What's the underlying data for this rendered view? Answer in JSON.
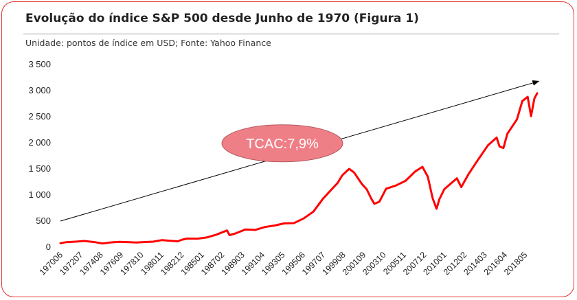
{
  "colors": {
    "frame": "#e0312f",
    "series": "#ff0000",
    "bubble_fill": "#ef7f87",
    "bubble_stroke": "#b35a60",
    "arrow": "#000000"
  },
  "chart_data": {
    "type": "line",
    "title": "Evolução do índice S&P 500 desde Junho de 1970 (Figura 1)",
    "subtitle": "Unidade: pontos de índice em USD; Fonte: Yahoo Finance",
    "ylim": [
      0,
      3500
    ],
    "yticks": [
      "0",
      "500",
      "1 000",
      "1 500",
      "2 000",
      "2 500",
      "3 000",
      "3 500"
    ],
    "ytick_values": [
      0,
      500,
      1000,
      1500,
      2000,
      2500,
      3000,
      3500
    ],
    "grid": false,
    "x_range": [
      1970.42,
      2019.58
    ],
    "xtick_labels": [
      "197006",
      "197207",
      "197408",
      "197609",
      "197810",
      "198011",
      "198212",
      "198501",
      "198702",
      "198903",
      "199104",
      "199305",
      "199506",
      "199707",
      "199908",
      "200109",
      "200310",
      "200511",
      "200712",
      "201001",
      "201202",
      "201403",
      "201604",
      "201805"
    ],
    "xtick_values": [
      1970.42,
      1972.5,
      1974.58,
      1976.67,
      1978.75,
      1980.83,
      1982.92,
      1985.0,
      1987.08,
      1989.17,
      1991.25,
      1993.33,
      1995.42,
      1997.5,
      1999.58,
      2001.67,
      2003.75,
      2005.83,
      2007.92,
      2010.0,
      2012.08,
      2014.17,
      2016.25,
      2018.33
    ],
    "series": [
      {
        "points": [
          [
            1970.42,
            75
          ],
          [
            1971.0,
            95
          ],
          [
            1972.0,
            105
          ],
          [
            1972.9,
            118
          ],
          [
            1973.5,
            105
          ],
          [
            1974.0,
            95
          ],
          [
            1974.75,
            70
          ],
          [
            1975.5,
            88
          ],
          [
            1976.5,
            103
          ],
          [
            1977.5,
            95
          ],
          [
            1978.25,
            90
          ],
          [
            1979.0,
            98
          ],
          [
            1980.0,
            105
          ],
          [
            1980.9,
            135
          ],
          [
            1981.5,
            125
          ],
          [
            1982.5,
            112
          ],
          [
            1983.0,
            145
          ],
          [
            1983.5,
            165
          ],
          [
            1984.5,
            160
          ],
          [
            1985.5,
            185
          ],
          [
            1986.5,
            240
          ],
          [
            1987.6,
            320
          ],
          [
            1987.85,
            230
          ],
          [
            1988.5,
            265
          ],
          [
            1989.5,
            340
          ],
          [
            1990.5,
            330
          ],
          [
            1991.5,
            385
          ],
          [
            1992.5,
            415
          ],
          [
            1993.5,
            455
          ],
          [
            1994.5,
            460
          ],
          [
            1995.5,
            550
          ],
          [
            1996.5,
            680
          ],
          [
            1997.5,
            930
          ],
          [
            1998.5,
            1130
          ],
          [
            1999.0,
            1230
          ],
          [
            1999.5,
            1380
          ],
          [
            2000.2,
            1500
          ],
          [
            2000.7,
            1430
          ],
          [
            2001.5,
            1210
          ],
          [
            2002.0,
            1110
          ],
          [
            2002.5,
            920
          ],
          [
            2002.8,
            830
          ],
          [
            2003.3,
            870
          ],
          [
            2004.0,
            1120
          ],
          [
            2005.0,
            1180
          ],
          [
            2006.0,
            1270
          ],
          [
            2007.0,
            1450
          ],
          [
            2007.75,
            1540
          ],
          [
            2008.3,
            1350
          ],
          [
            2008.8,
            940
          ],
          [
            2009.2,
            735
          ],
          [
            2009.5,
            920
          ],
          [
            2010.0,
            1110
          ],
          [
            2011.3,
            1320
          ],
          [
            2011.75,
            1150
          ],
          [
            2012.5,
            1400
          ],
          [
            2013.5,
            1680
          ],
          [
            2014.5,
            1950
          ],
          [
            2015.4,
            2100
          ],
          [
            2015.7,
            1930
          ],
          [
            2016.1,
            1900
          ],
          [
            2016.5,
            2170
          ],
          [
            2017.5,
            2450
          ],
          [
            2018.05,
            2800
          ],
          [
            2018.6,
            2880
          ],
          [
            2018.95,
            2510
          ],
          [
            2019.3,
            2850
          ],
          [
            2019.58,
            2950
          ]
        ]
      }
    ],
    "arrow": {
      "start": [
        1970.42,
        500
      ],
      "end": [
        2019.75,
        3180
      ]
    },
    "annotation": {
      "text": "TCAC:7,9%",
      "center": [
        1993.3,
        1990
      ]
    }
  }
}
